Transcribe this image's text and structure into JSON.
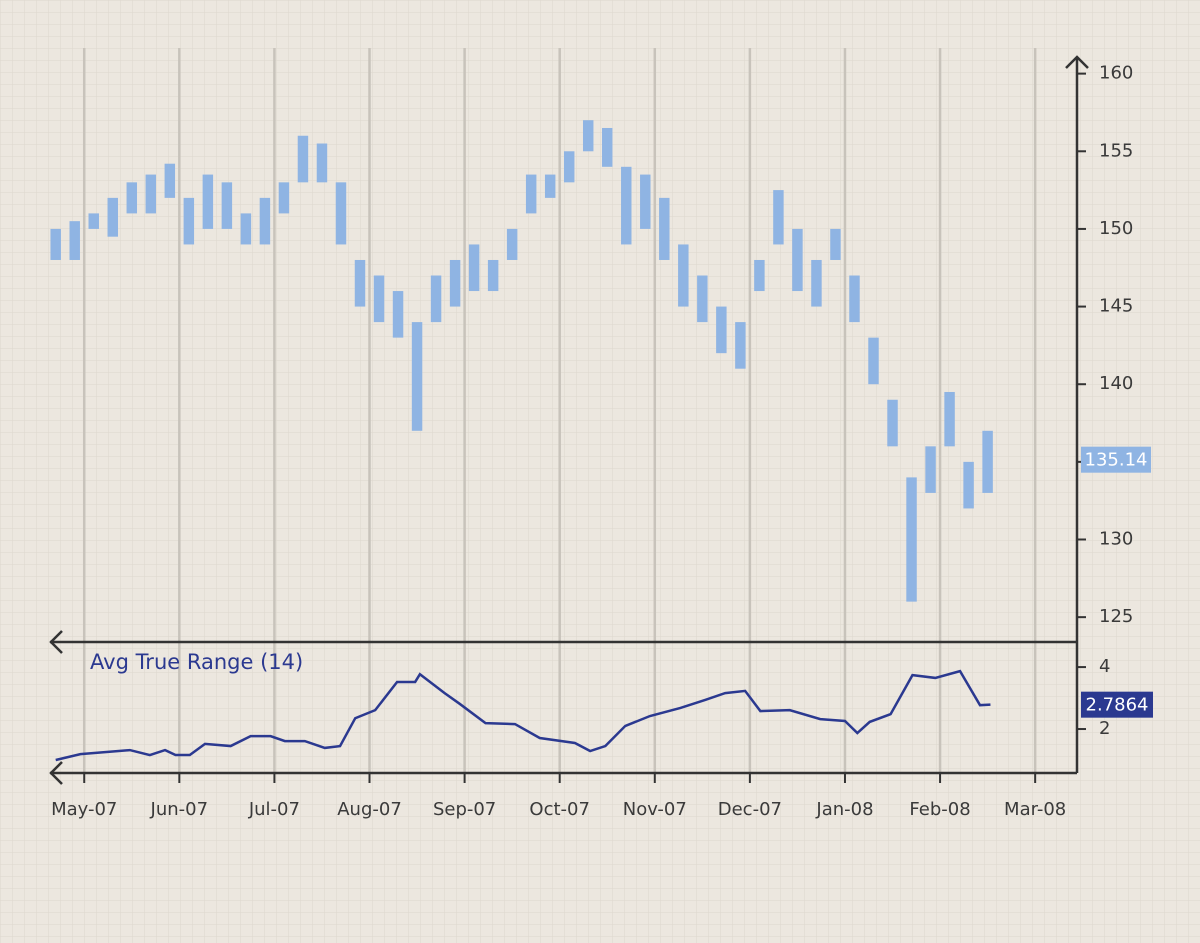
{
  "chart_data": [
    {
      "type": "range-bar",
      "color": "#8fb4e3",
      "last_value": 135.14,
      "x": [
        -0.3,
        -0.1,
        0.1,
        0.3,
        0.5,
        0.7,
        0.9,
        1.1,
        1.3,
        1.5,
        1.7,
        1.9,
        2.1,
        2.3,
        2.5,
        2.7,
        2.9,
        3.1,
        3.3,
        3.5,
        3.7,
        3.9,
        4.1,
        4.3,
        4.5,
        4.7,
        4.9,
        5.1,
        5.3,
        5.5,
        5.7,
        5.9,
        6.1,
        6.3,
        6.5,
        6.7,
        6.9,
        7.1,
        7.3,
        7.5,
        7.7,
        7.9,
        8.1,
        8.3,
        8.5,
        8.7,
        8.9,
        9.1,
        9.3,
        9.5
      ],
      "high": [
        150,
        150.5,
        151,
        152,
        153,
        153.5,
        154.2,
        152,
        153.5,
        153,
        151,
        152,
        153,
        156,
        155.5,
        153,
        148,
        147,
        146,
        144,
        147,
        148,
        149,
        148,
        150,
        153.5,
        153.5,
        155,
        157,
        156.5,
        154,
        153.5,
        152,
        149,
        147,
        145,
        144,
        148,
        152.5,
        150,
        148,
        150,
        147,
        143,
        139,
        134,
        136,
        139.5,
        135,
        137
      ],
      "low": [
        148,
        148,
        150,
        149.5,
        151,
        151,
        152,
        149,
        150,
        150,
        149,
        149,
        151,
        153,
        153,
        149,
        145,
        144,
        143,
        137,
        144,
        145,
        146,
        146,
        148,
        151,
        152,
        153,
        155,
        154,
        149,
        150,
        148,
        145,
        144,
        142,
        141,
        146,
        149,
        146,
        145,
        148,
        144,
        140,
        136,
        126,
        133,
        136,
        132,
        133
      ],
      "xlim": [
        -0.36,
        10.44
      ],
      "ylim": [
        123.4,
        161.2
      ],
      "yticks": [
        125,
        130,
        135,
        140,
        145,
        150,
        155,
        160
      ]
    },
    {
      "type": "line",
      "title": "Avg True Range (14)",
      "color": "#2b3990",
      "x": [
        -0.3,
        -0.04,
        0.48,
        0.69,
        0.85,
        0.96,
        1.11,
        1.27,
        1.54,
        1.75,
        1.96,
        2.11,
        2.32,
        2.53,
        2.69,
        2.85,
        3.06,
        3.29,
        3.48,
        3.53,
        3.79,
        3.95,
        4.22,
        4.53,
        4.79,
        5.16,
        5.32,
        5.48,
        5.69,
        5.95,
        6.27,
        6.53,
        6.74,
        6.95,
        7.11,
        7.42,
        7.74,
        8.0,
        8.13,
        8.26,
        8.48,
        8.71,
        8.95,
        9.21,
        9.42,
        9.53
      ],
      "values": [
        1.0,
        1.19,
        1.32,
        1.16,
        1.32,
        1.16,
        1.16,
        1.52,
        1.45,
        1.77,
        1.77,
        1.61,
        1.61,
        1.39,
        1.45,
        2.35,
        2.61,
        3.52,
        3.52,
        3.77,
        3.16,
        2.81,
        2.19,
        2.16,
        1.71,
        1.55,
        1.29,
        1.45,
        2.1,
        2.42,
        2.68,
        2.94,
        3.16,
        3.23,
        2.58,
        2.61,
        2.32,
        2.26,
        1.87,
        2.23,
        2.48,
        3.74,
        3.65,
        3.87,
        2.77,
        2.7864
      ],
      "xlim": [
        -0.36,
        10.44
      ],
      "ylim": [
        0.58,
        4.81
      ],
      "yticks": [
        2,
        4
      ],
      "xticks": [
        {
          "value": 0,
          "label": "May-07"
        },
        {
          "value": 1,
          "label": "Jun-07"
        },
        {
          "value": 2,
          "label": "Jul-07"
        },
        {
          "value": 3,
          "label": "Aug-07"
        },
        {
          "value": 4,
          "label": "Sep-07"
        },
        {
          "value": 5,
          "label": "Oct-07"
        },
        {
          "value": 6,
          "label": "Nov-07"
        },
        {
          "value": 7,
          "label": "Dec-07"
        },
        {
          "value": 8,
          "label": "Jan-08"
        },
        {
          "value": 9,
          "label": "Feb-08"
        },
        {
          "value": 10,
          "label": "Mar-08"
        }
      ]
    }
  ]
}
